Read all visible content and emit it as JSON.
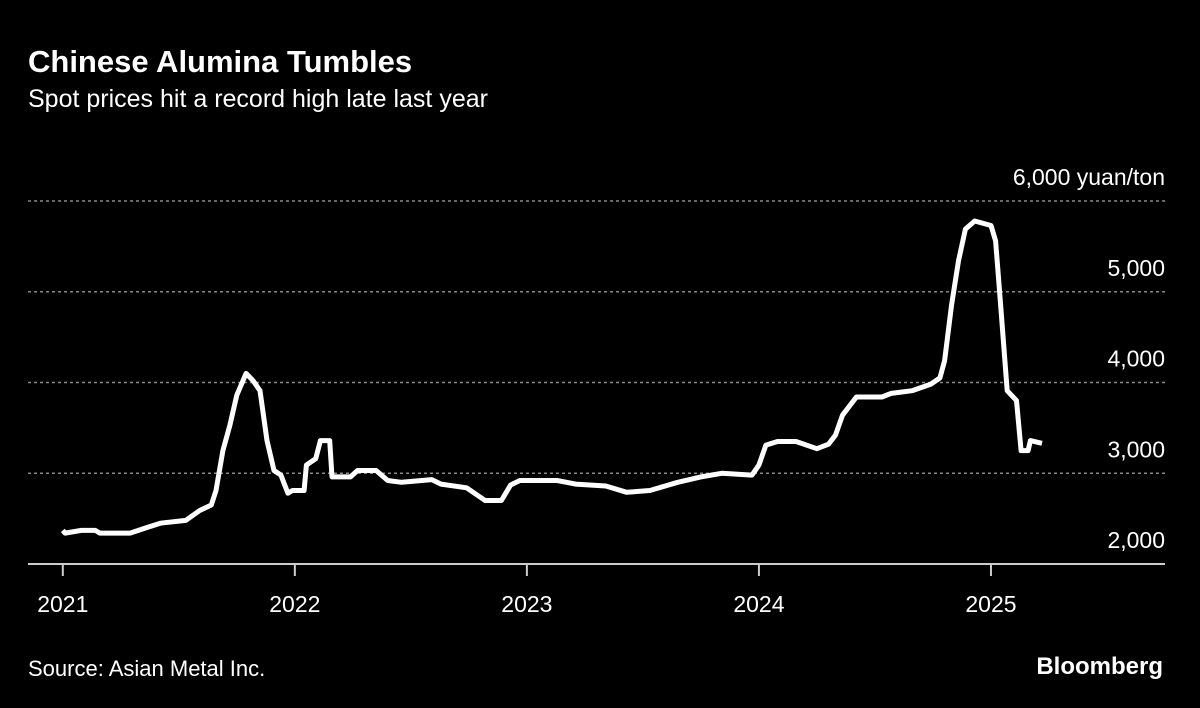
{
  "chart_data": {
    "type": "line",
    "title": "Chinese Alumina Tumbles",
    "subtitle": "Spot prices hit a record high late last year",
    "source": "Source: Asian Metal Inc.",
    "brand": "Bloomberg",
    "xlim": [
      2020.85,
      2025.75
    ],
    "xticks": [
      2021,
      2022,
      2023,
      2024,
      2025
    ],
    "ylim": [
      2000,
      6000
    ],
    "yticks": [
      {
        "value": 2000,
        "label": "2,000"
      },
      {
        "value": 3000,
        "label": "3,000"
      },
      {
        "value": 4000,
        "label": "4,000"
      },
      {
        "value": 5000,
        "label": "5,000"
      },
      {
        "value": 6000,
        "label": "6,000 yuan/ton"
      }
    ],
    "grid": true,
    "series": [
      {
        "color": "#ffffff",
        "x": [
          2021.0,
          2021.01,
          2021.08,
          2021.14,
          2021.16,
          2021.29,
          2021.36,
          2021.42,
          2021.53,
          2021.59,
          2021.64,
          2021.66,
          2021.69,
          2021.72,
          2021.75,
          2021.79,
          2021.82,
          2021.85,
          2021.88,
          2021.91,
          2021.94,
          2021.97,
          2021.99,
          2022.04,
          2022.05,
          2022.09,
          2022.11,
          2022.15,
          2022.16,
          2022.24,
          2022.27,
          2022.35,
          2022.4,
          2022.46,
          2022.59,
          2022.63,
          2022.74,
          2022.82,
          2022.89,
          2022.93,
          2022.97,
          2023.13,
          2023.21,
          2023.34,
          2023.43,
          2023.53,
          2023.65,
          2023.75,
          2023.84,
          2023.97,
          2024.0,
          2024.03,
          2024.08,
          2024.16,
          2024.25,
          2024.3,
          2024.33,
          2024.36,
          2024.42,
          2024.53,
          2024.57,
          2024.66,
          2024.74,
          2024.78,
          2024.8,
          2024.83,
          2024.86,
          2024.89,
          2024.93,
          2025.0,
          2025.02,
          2025.04,
          2025.07,
          2025.11,
          2025.13,
          2025.16,
          2025.17,
          2025.22
        ],
        "values": [
          2370,
          2340,
          2370,
          2370,
          2340,
          2340,
          2400,
          2450,
          2480,
          2590,
          2650,
          2810,
          3250,
          3530,
          3860,
          4100,
          4020,
          3910,
          3360,
          3030,
          2980,
          2780,
          2810,
          2810,
          3090,
          3160,
          3360,
          3360,
          2960,
          2960,
          3030,
          3030,
          2920,
          2900,
          2930,
          2880,
          2840,
          2700,
          2700,
          2870,
          2920,
          2920,
          2880,
          2860,
          2790,
          2810,
          2900,
          2960,
          3000,
          2980,
          3090,
          3310,
          3350,
          3350,
          3270,
          3320,
          3420,
          3640,
          3840,
          3840,
          3880,
          3910,
          3980,
          4050,
          4240,
          4850,
          5340,
          5690,
          5780,
          5730,
          5560,
          4900,
          3910,
          3800,
          3250,
          3250,
          3360,
          3330
        ]
      }
    ]
  }
}
